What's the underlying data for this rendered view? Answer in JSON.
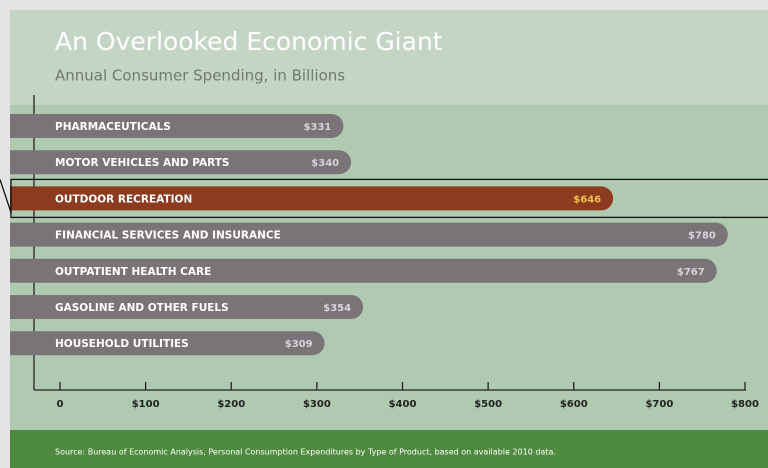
{
  "chart_data": {
    "type": "bar",
    "orientation": "horizontal",
    "title": "An Overlooked Economic Giant",
    "subtitle": "Annual Consumer Spending, in Billions",
    "categories": [
      "PHARMACEUTICALS",
      "MOTOR VEHICLES AND PARTS",
      "OUTDOOR RECREATION",
      "FINANCIAL SERVICES AND INSURANCE",
      "OUTPATIENT HEALTH CARE",
      "GASOLINE AND OTHER FUELS",
      "HOUSEHOLD UTILITIES"
    ],
    "values": [
      331,
      340,
      646,
      780,
      767,
      354,
      309
    ],
    "value_labels": [
      "$331",
      "$340",
      "$646",
      "$780",
      "$767",
      "$354",
      "$309"
    ],
    "colors": [
      "#7a7378",
      "#7a7378",
      "#8c3b1f",
      "#7a7378",
      "#7a7378",
      "#7a7378",
      "#7a7378"
    ],
    "value_label_colors": [
      "#d9d2d8",
      "#d9d2d8",
      "#f2c14a",
      "#d9d2d8",
      "#d9d2d8",
      "#d9d2d8",
      "#d9d2d8"
    ],
    "xlim": [
      0,
      800
    ],
    "xticks": [
      0,
      {
        "value": 100,
        "label": "$100"
      },
      {
        "value": 200,
        "label": "$200"
      },
      {
        "value": 300,
        "label": "$300"
      },
      {
        "value": 400,
        "label": "$400"
      },
      {
        "value": 500,
        "label": "$500"
      },
      {
        "value": 600,
        "label": "$600"
      },
      {
        "value": 700,
        "label": "$700"
      },
      {
        "value": 800,
        "label": "$800"
      }
    ],
    "source": "Source:  Bureau of Economic Analysis, Personal Consumption Expenditures by Type of Product, based on available 2010 data."
  }
}
